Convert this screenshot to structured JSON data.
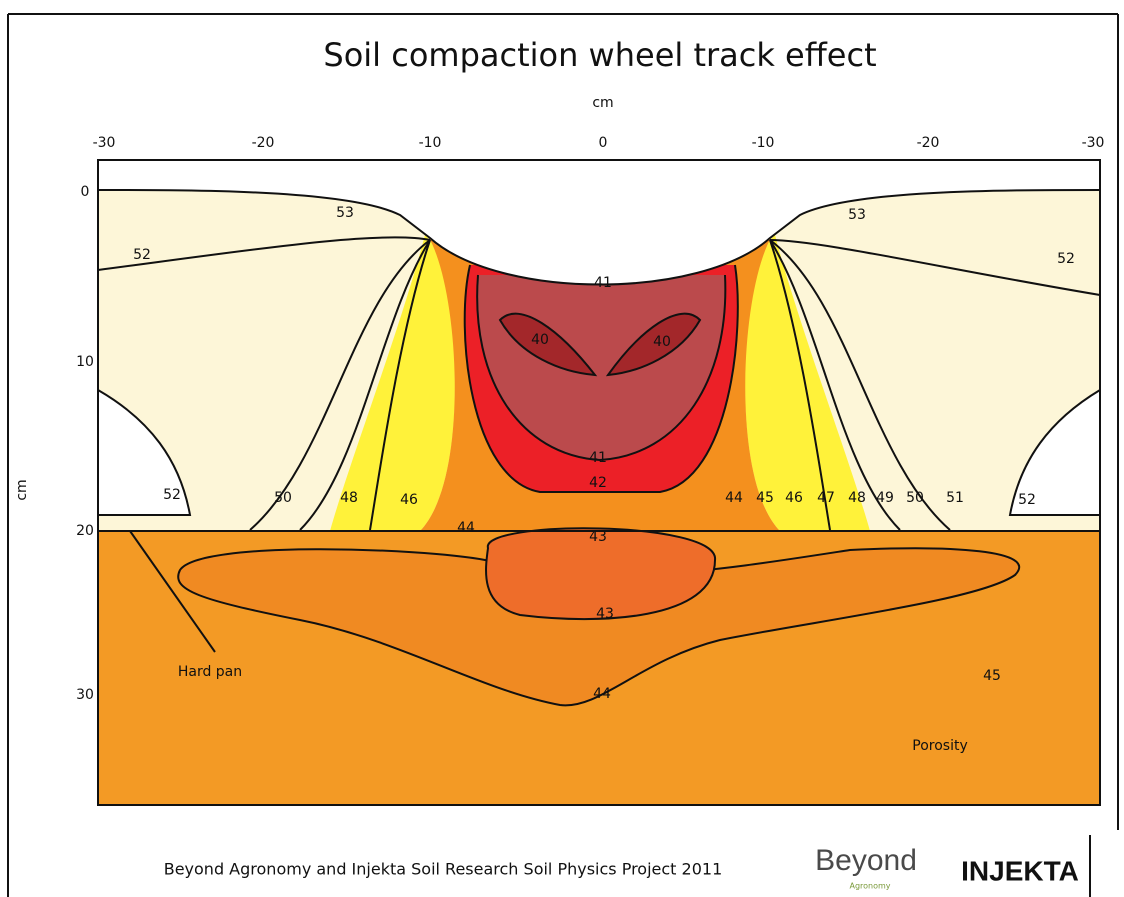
{
  "title": "Soil compaction wheel track effect",
  "x_axis": {
    "label": "cm",
    "ticks": [
      -30,
      -20,
      -10,
      0,
      -10,
      -20,
      -30
    ]
  },
  "y_axis": {
    "label": "cm",
    "ticks": [
      0,
      10,
      20,
      30
    ]
  },
  "contour_labels": [
    "53",
    "52",
    "41",
    "40",
    "40",
    "41",
    "42",
    "52",
    "50",
    "48",
    "46",
    "44",
    "43",
    "44",
    "45",
    "46",
    "47",
    "48",
    "49",
    "50",
    "51",
    "52",
    "53",
    "52",
    "43",
    "44",
    "45"
  ],
  "annotations": [
    "Hard pan",
    "Porosity"
  ],
  "footer": {
    "credit": "Beyond Agronomy and Injekta Soil Research Soil Physics Project 2011",
    "logo_beyond": "Beyond",
    "logo_beyond_sub": "Agronomy",
    "logo_injekta": "INJEKTA"
  }
}
